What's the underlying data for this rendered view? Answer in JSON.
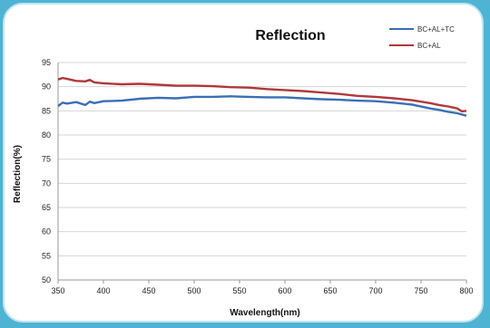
{
  "chart_data": {
    "type": "line",
    "title": "Reflection",
    "xlabel": "Wavelength(nm)",
    "ylabel": "Reflection(%)",
    "xlim": [
      350,
      800
    ],
    "ylim": [
      50,
      95
    ],
    "xticks": [
      350,
      400,
      450,
      500,
      550,
      600,
      650,
      700,
      750,
      800
    ],
    "yticks": [
      50,
      55,
      60,
      65,
      70,
      75,
      80,
      85,
      90,
      95
    ],
    "grid": "horizontal",
    "legend_position": "top-right",
    "series": [
      {
        "name": "BC+AL+TC",
        "color": "#3a6fb5",
        "x": [
          350,
          355,
          360,
          370,
          380,
          385,
          390,
          400,
          420,
          440,
          460,
          480,
          500,
          520,
          540,
          560,
          580,
          600,
          620,
          640,
          660,
          680,
          700,
          720,
          740,
          760,
          770,
          780,
          790,
          800
        ],
        "y": [
          86,
          86.7,
          86.5,
          86.8,
          86.2,
          86.9,
          86.6,
          87,
          87.1,
          87.5,
          87.7,
          87.6,
          87.9,
          87.9,
          88,
          87.9,
          87.8,
          87.8,
          87.6,
          87.4,
          87.3,
          87.1,
          87,
          86.7,
          86.3,
          85.5,
          85.2,
          84.8,
          84.5,
          84
        ]
      },
      {
        "name": "BC+AL",
        "color": "#b03838",
        "x": [
          350,
          355,
          360,
          370,
          380,
          385,
          390,
          400,
          420,
          440,
          460,
          480,
          500,
          520,
          540,
          560,
          580,
          600,
          620,
          640,
          660,
          680,
          700,
          720,
          740,
          760,
          770,
          780,
          790,
          795,
          800
        ],
        "y": [
          91.5,
          91.8,
          91.6,
          91.2,
          91.1,
          91.4,
          90.9,
          90.7,
          90.5,
          90.6,
          90.4,
          90.2,
          90.2,
          90.1,
          89.9,
          89.8,
          89.5,
          89.3,
          89.1,
          88.8,
          88.5,
          88.1,
          87.9,
          87.6,
          87.2,
          86.6,
          86.2,
          85.9,
          85.5,
          84.9,
          85
        ]
      }
    ]
  }
}
